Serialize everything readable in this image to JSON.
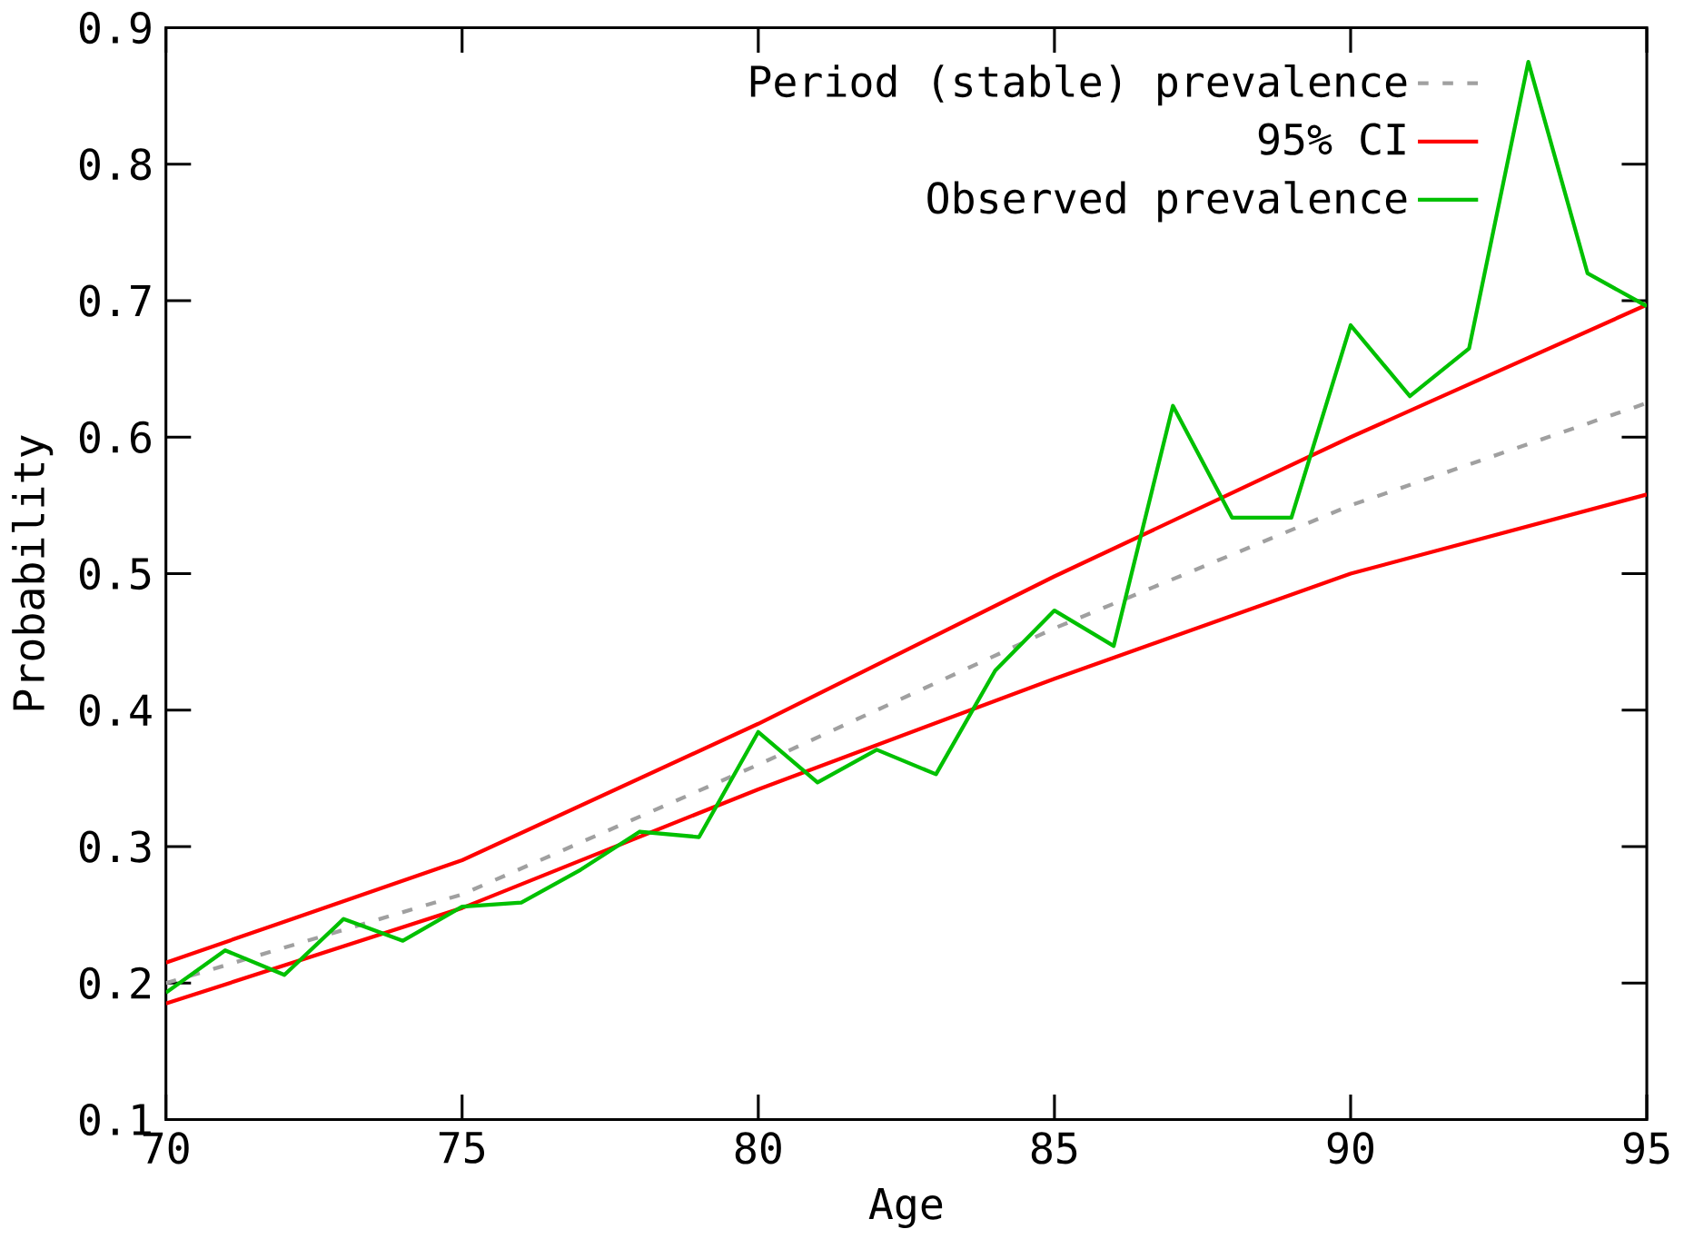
{
  "chart_data": {
    "type": "line",
    "xlabel": "Age",
    "ylabel": "Probability",
    "xlim": [
      70,
      95
    ],
    "ylim": [
      0.1,
      0.9
    ],
    "xticks": [
      70,
      75,
      80,
      85,
      90,
      95
    ],
    "yticks": [
      0.1,
      0.2,
      0.3,
      0.4,
      0.5,
      0.6,
      0.7,
      0.8,
      0.9
    ],
    "legend": "top right",
    "grid": false,
    "marker": "none",
    "series": [
      {
        "name": "Period (stable) prevalence",
        "color": "#a0a0a0",
        "line_style": "dotted",
        "x": [
          70,
          75,
          80,
          85,
          90,
          95
        ],
        "values": [
          0.2,
          0.265,
          0.36,
          0.46,
          0.55,
          0.625
        ]
      },
      {
        "name": "95% CI",
        "color": "#ff0000",
        "line_style": "solid",
        "x": [
          70,
          75,
          80,
          85,
          90,
          95
        ],
        "values": [
          0.215,
          0.29,
          0.39,
          0.498,
          0.6,
          0.697
        ]
      },
      {
        "color": "#ff0000",
        "line_style": "solid",
        "x": [
          70,
          75,
          80,
          85,
          90,
          95
        ],
        "values": [
          0.185,
          0.255,
          0.342,
          0.423,
          0.5,
          0.558
        ]
      },
      {
        "name": "Observed prevalence",
        "color": "#00c000",
        "line_style": "solid",
        "x": [
          70,
          71,
          72,
          73,
          74,
          75,
          76,
          77,
          78,
          79,
          80,
          81,
          82,
          83,
          84,
          85,
          86,
          87,
          88,
          89,
          90,
          91,
          92,
          93,
          94,
          95
        ],
        "values": [
          0.193,
          0.224,
          0.206,
          0.247,
          0.231,
          0.256,
          0.259,
          0.283,
          0.311,
          0.307,
          0.384,
          0.347,
          0.371,
          0.353,
          0.429,
          0.473,
          0.447,
          0.623,
          0.541,
          0.541,
          0.682,
          0.63,
          0.665,
          0.875,
          0.72,
          0.696
        ]
      }
    ]
  }
}
